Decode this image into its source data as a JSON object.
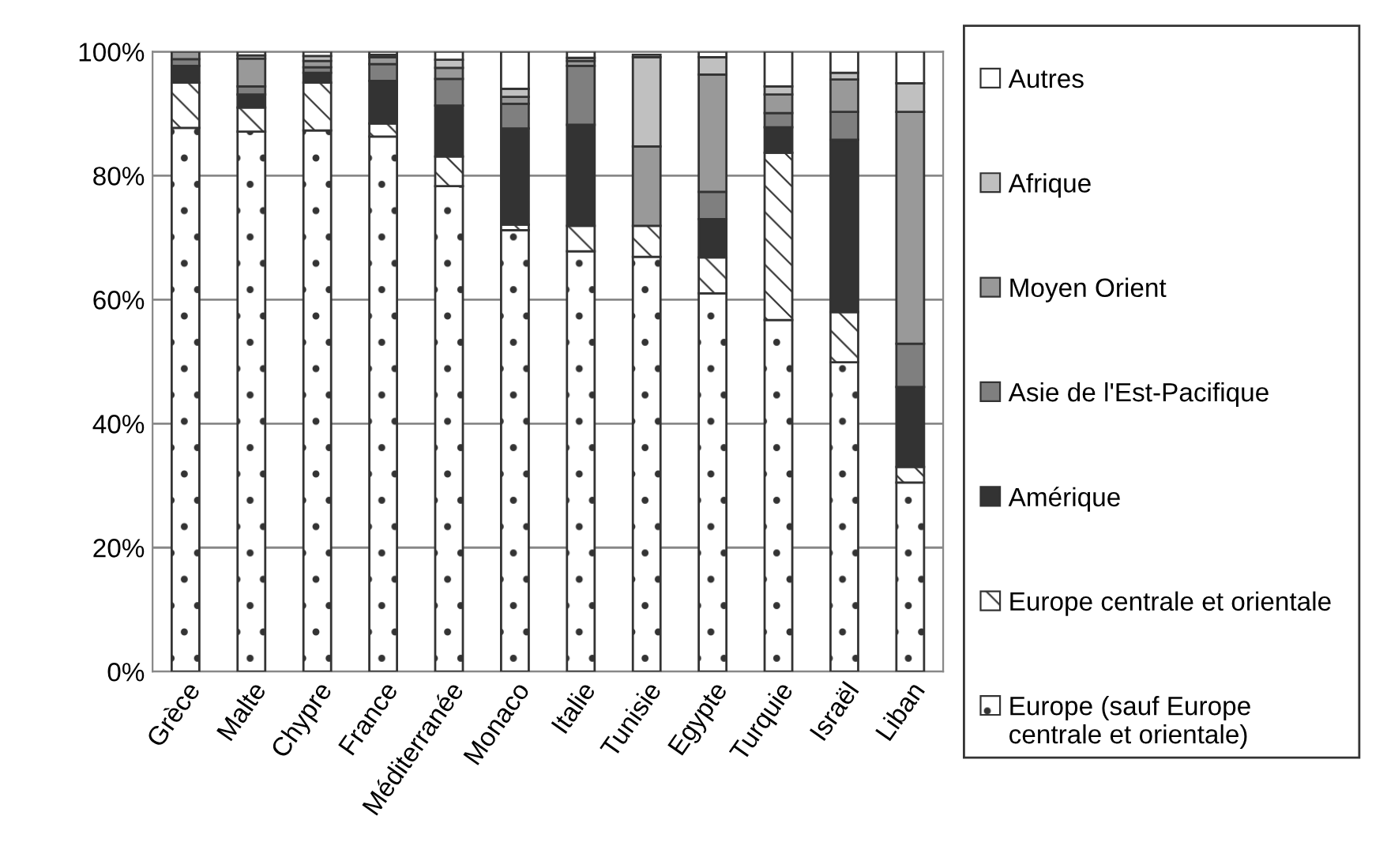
{
  "chart_data": {
    "type": "bar",
    "stacked": true,
    "categories": [
      "Grèce",
      "Malte",
      "Chypre",
      "France",
      "Méditerranée",
      "Monaco",
      "Italie",
      "Tunisie",
      "Egypte",
      "Turquie",
      "Israël",
      "Liban"
    ],
    "series": [
      {
        "name": "Europe (sauf Europe centrale et orientale)",
        "color": "#ffffff",
        "values": [
          87.7,
          87.1,
          87.3,
          86.3,
          78.3,
          71.2,
          67.8,
          66.9,
          61.0,
          56.7,
          49.9,
          30.5
        ]
      },
      {
        "name": "Europe centrale et orientale",
        "color": "#ffffff",
        "values": [
          7.3,
          3.9,
          7.7,
          2.1,
          4.8,
          0.9,
          4.1,
          5.0,
          5.8,
          27.0,
          8.1,
          2.5
        ]
      },
      {
        "name": "Amérique",
        "color": "#333333",
        "values": [
          2.7,
          2.1,
          1.6,
          6.9,
          8.2,
          15.5,
          16.3,
          null,
          6.2,
          4.1,
          27.8,
          12.9
        ]
      },
      {
        "name": "Asie de l'Est-Pacifique",
        "color": "#7f7f7f",
        "values": [
          1.1,
          1.3,
          0.9,
          2.7,
          4.3,
          4.0,
          9.5,
          null,
          4.4,
          2.3,
          4.5,
          7.0
        ]
      },
      {
        "name": "Moyen Orient",
        "color": "#999999",
        "values": [
          1.2,
          4.5,
          1.0,
          1.1,
          1.8,
          1.1,
          0.8,
          12.8,
          18.9,
          3.0,
          5.2,
          37.4
        ]
      },
      {
        "name": "Afrique",
        "color": "#c0c0c0",
        "values": [
          null,
          0.5,
          0.8,
          0.4,
          1.3,
          1.3,
          0.5,
          14.4,
          2.8,
          1.3,
          1.1,
          4.6
        ]
      },
      {
        "name": "Autres",
        "color": "#ffffff",
        "values": [
          null,
          0.6,
          0.7,
          0.5,
          1.3,
          6.0,
          1.0,
          0.4,
          0.9,
          5.6,
          3.4,
          5.1
        ]
      }
    ],
    "ylim": [
      0,
      100
    ],
    "yticks": [
      {
        "value": 0,
        "label": "0%"
      },
      {
        "value": 20,
        "label": "20%"
      },
      {
        "value": 40,
        "label": "40%"
      },
      {
        "value": 60,
        "label": "60%"
      },
      {
        "value": 80,
        "label": "80%"
      },
      {
        "value": 100,
        "label": "100%"
      }
    ],
    "grid": "y",
    "legend": "right"
  }
}
